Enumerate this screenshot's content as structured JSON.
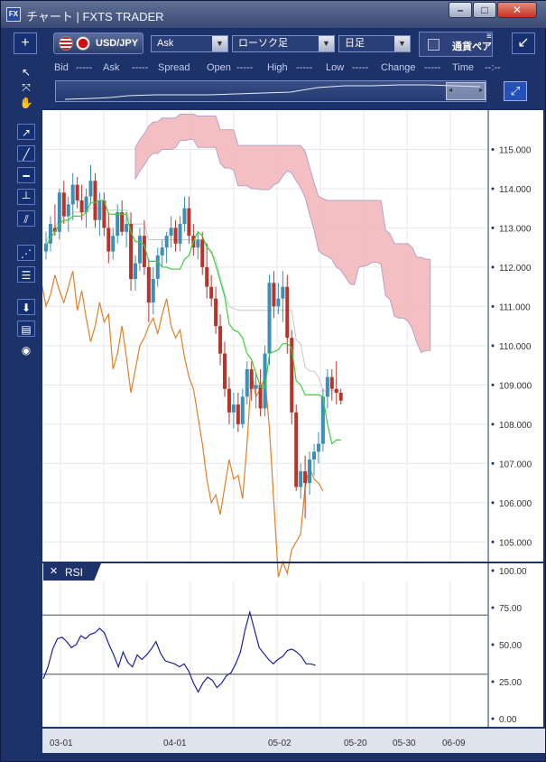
{
  "titlebar": {
    "app_icon": "FX",
    "title": "チャート | FXTS TRADER",
    "minimize": "–",
    "maximize": "□",
    "close": "✕"
  },
  "toolbar": {
    "add_chart": "+",
    "symbol": "USD/JPY",
    "price_type": "Ask",
    "chart_type": "ローソク足",
    "timeframe": "日足",
    "compare_label": "通貨ペア",
    "menu_icon": "≡",
    "detach": "↙",
    "dropdown_arrow": "▼"
  },
  "info": {
    "bid_label": "Bid",
    "bid_value": "-----",
    "ask_label": "Ask",
    "ask_value": "-----",
    "spread_label": "Spread",
    "open_label": "Open",
    "open_value": "-----",
    "high_label": "High",
    "high_value": "-----",
    "low_label": "Low",
    "low_value": "-----",
    "change_label": "Change",
    "change_value": "-----",
    "time_label": "Time",
    "time_value": "--:--"
  },
  "overview": {
    "left_arrow": "◂",
    "right_arrow": "▸",
    "zoom_icon": "⤢"
  },
  "tools": [
    "pointer-icon",
    "crosshair-icon",
    "hand-icon",
    "ray-icon",
    "trendline-icon",
    "horizontal-line-icon",
    "vertical-line-icon",
    "channel-icon",
    "fan-icon",
    "fibonacci-icon",
    "download-icon",
    "list-icon",
    "camera-icon"
  ],
  "rsi_panel": {
    "close": "✕",
    "label": "RSI"
  },
  "colors": {
    "cloud": "#f2b8bb",
    "cloud_edge": "#b7a2c9",
    "tenkan": "#3ccf3c",
    "lagging": "#e0802a",
    "kijun": "#c8c8d0",
    "bull": "#3c8fb6",
    "bear": "#b8342a",
    "rsi": "#1f1f9a"
  },
  "chart_data": [
    {
      "type": "candlestick",
      "yticks": [
        "115.000",
        "114.000",
        "113.000",
        "112.000",
        "111.000",
        "110.000",
        "109.000",
        "108.000",
        "107.000",
        "106.000",
        "105.000"
      ],
      "ylim": [
        104.5,
        116.0
      ],
      "xticks": [
        "03-01",
        "04-01",
        "05-02",
        "05-20",
        "05-30",
        "06-09"
      ],
      "candles": [
        [
          112.4,
          112.9,
          112.2,
          112.6
        ],
        [
          112.6,
          113.3,
          112.4,
          113.1
        ],
        [
          113.0,
          113.6,
          112.8,
          112.9
        ],
        [
          112.9,
          114.0,
          112.7,
          113.9
        ],
        [
          113.9,
          114.2,
          113.1,
          113.3
        ],
        [
          113.3,
          113.8,
          112.9,
          113.6
        ],
        [
          113.6,
          114.4,
          113.2,
          114.1
        ],
        [
          114.1,
          114.3,
          113.5,
          113.7
        ],
        [
          113.7,
          114.1,
          113.2,
          113.4
        ],
        [
          113.4,
          114.0,
          113.0,
          113.8
        ],
        [
          113.8,
          114.6,
          113.6,
          114.2
        ],
        [
          114.2,
          114.4,
          113.0,
          113.2
        ],
        [
          113.2,
          113.9,
          112.8,
          113.7
        ],
        [
          113.7,
          113.9,
          112.8,
          113.0
        ],
        [
          113.0,
          113.4,
          112.1,
          112.4
        ],
        [
          112.4,
          113.0,
          112.2,
          112.8
        ],
        [
          112.8,
          113.6,
          112.6,
          113.4
        ],
        [
          113.4,
          113.7,
          112.8,
          112.9
        ],
        [
          112.9,
          113.4,
          112.5,
          113.1
        ],
        [
          113.1,
          113.4,
          111.4,
          111.7
        ],
        [
          111.7,
          112.3,
          111.4,
          112.1
        ],
        [
          112.1,
          113.0,
          111.9,
          112.8
        ],
        [
          112.8,
          113.2,
          111.8,
          112.0
        ],
        [
          112.0,
          112.2,
          110.6,
          111.1
        ],
        [
          111.1,
          112.0,
          110.8,
          111.7
        ],
        [
          111.7,
          112.5,
          111.5,
          112.3
        ],
        [
          112.3,
          112.7,
          112.0,
          112.5
        ],
        [
          112.5,
          112.9,
          112.1,
          112.8
        ],
        [
          112.8,
          113.3,
          112.5,
          113.0
        ],
        [
          113.0,
          113.2,
          112.4,
          112.6
        ],
        [
          112.6,
          113.3,
          112.4,
          113.1
        ],
        [
          113.1,
          113.8,
          112.9,
          113.5
        ],
        [
          113.5,
          113.8,
          112.6,
          112.8
        ],
        [
          112.8,
          113.1,
          112.3,
          112.5
        ],
        [
          112.5,
          112.9,
          112.2,
          112.7
        ],
        [
          112.7,
          112.9,
          111.8,
          112.0
        ],
        [
          112.0,
          112.6,
          111.2,
          111.5
        ],
        [
          111.5,
          111.8,
          111.0,
          111.2
        ],
        [
          111.2,
          111.5,
          110.3,
          110.5
        ],
        [
          110.5,
          110.8,
          109.5,
          109.8
        ],
        [
          109.8,
          110.1,
          108.7,
          108.9
        ],
        [
          108.9,
          109.2,
          108.0,
          108.3
        ],
        [
          108.3,
          108.8,
          107.9,
          108.5
        ],
        [
          108.5,
          108.8,
          107.8,
          108.0
        ],
        [
          108.0,
          108.9,
          107.9,
          108.7
        ],
        [
          108.7,
          109.6,
          108.5,
          109.4
        ],
        [
          109.4,
          109.6,
          108.6,
          108.9
        ],
        [
          108.9,
          109.3,
          108.4,
          109.0
        ],
        [
          109.0,
          109.4,
          108.2,
          108.4
        ],
        [
          108.4,
          110.0,
          108.2,
          109.8
        ],
        [
          109.8,
          111.8,
          109.5,
          111.6
        ],
        [
          111.6,
          111.9,
          110.7,
          111.0
        ],
        [
          111.0,
          111.6,
          110.8,
          111.2
        ],
        [
          111.2,
          111.9,
          110.6,
          111.5
        ],
        [
          111.5,
          111.8,
          109.8,
          110.2
        ],
        [
          110.2,
          110.4,
          108.0,
          108.3
        ],
        [
          108.3,
          108.5,
          106.3,
          106.4
        ],
        [
          106.4,
          107.0,
          106.1,
          106.8
        ],
        [
          106.8,
          107.2,
          105.6,
          106.5
        ],
        [
          106.5,
          107.3,
          106.2,
          107.1
        ],
        [
          107.1,
          107.5,
          106.7,
          107.3
        ],
        [
          107.3,
          107.8,
          107.0,
          107.5
        ],
        [
          107.5,
          108.9,
          107.3,
          108.7
        ],
        [
          108.7,
          109.4,
          108.4,
          109.2
        ],
        [
          109.2,
          109.4,
          108.6,
          108.9
        ],
        [
          108.9,
          109.6,
          108.5,
          108.8
        ],
        [
          108.8,
          108.9,
          108.5,
          108.6
        ]
      ]
    },
    {
      "type": "line",
      "title": "RSI",
      "yticks": [
        "100.00",
        "75.00",
        "50.00",
        "25.00",
        "0.00"
      ],
      "ylim": [
        0,
        100
      ],
      "levels": [
        70,
        30
      ],
      "values": [
        27,
        35,
        47,
        54,
        55,
        52,
        48,
        50,
        56,
        54,
        57,
        58,
        61,
        58,
        50,
        43,
        35,
        45,
        38,
        35,
        43,
        40,
        43,
        47,
        52,
        44,
        39,
        38,
        37,
        35,
        37,
        32,
        24,
        18,
        24,
        28,
        26,
        21,
        24,
        29,
        31,
        37,
        45,
        60,
        72,
        60,
        48,
        44,
        40,
        37,
        40,
        42,
        46,
        47,
        45,
        42,
        37,
        37,
        36
      ]
    }
  ]
}
